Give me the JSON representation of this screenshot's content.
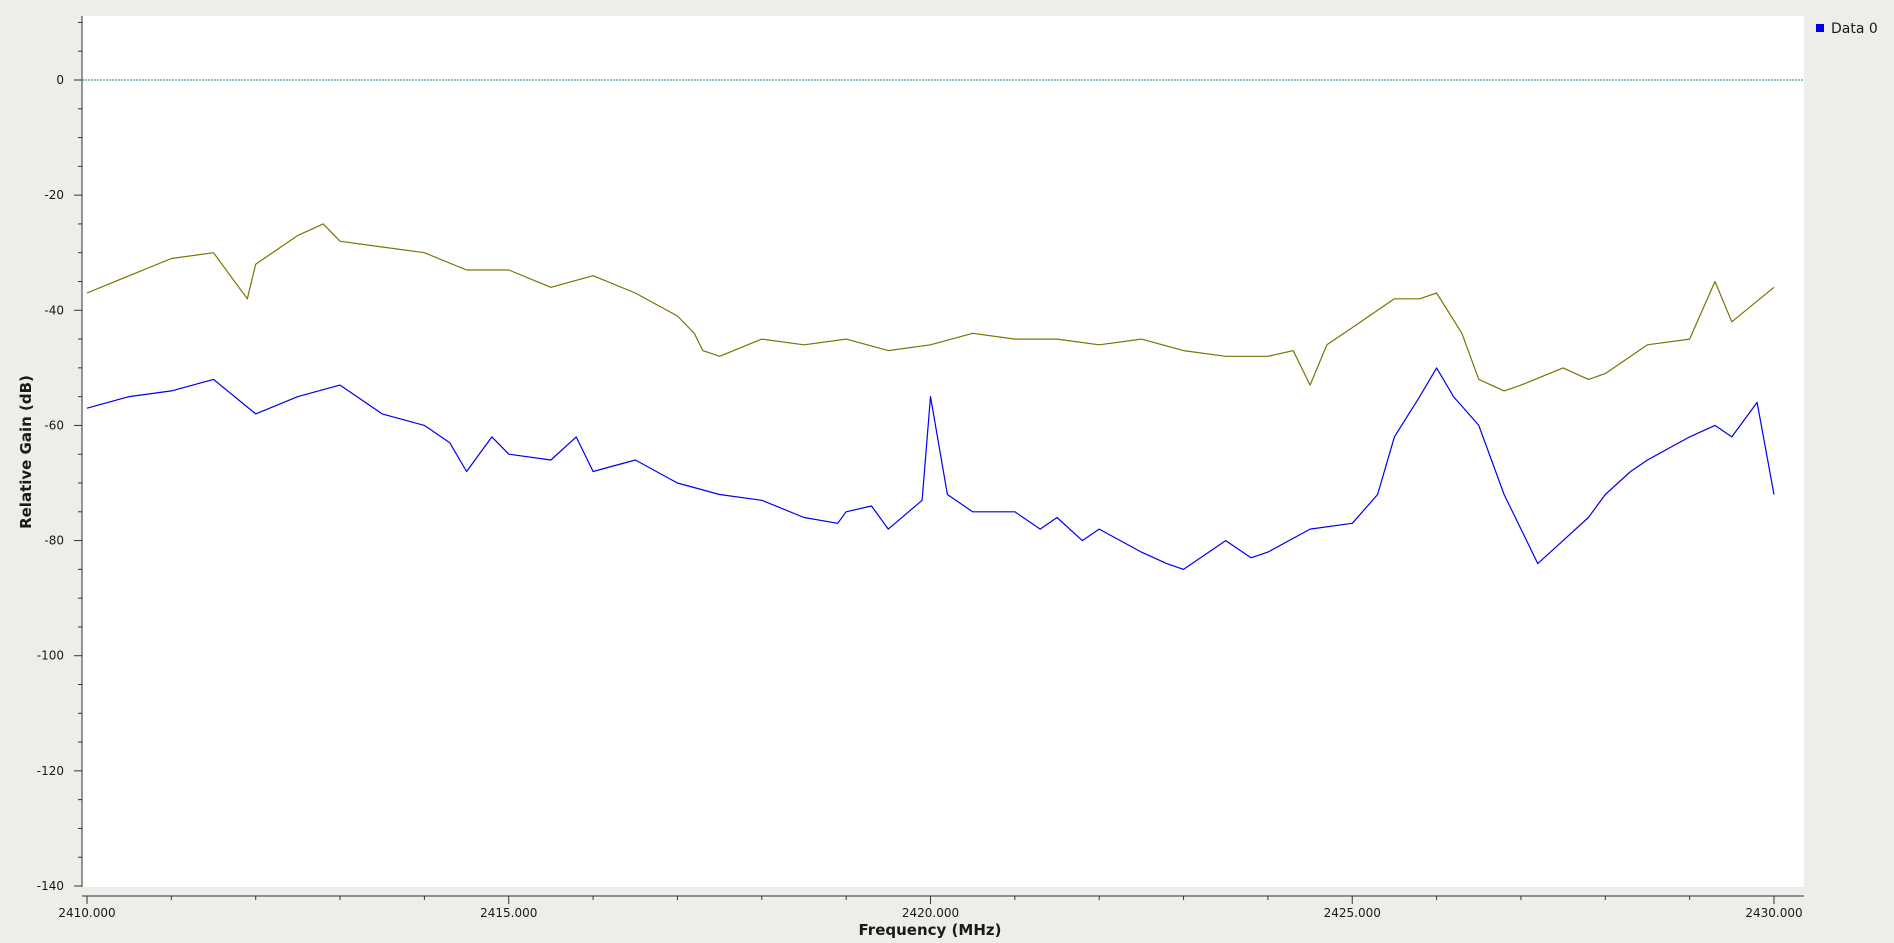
{
  "chart_data": {
    "type": "line",
    "title": "",
    "xlabel": "Frequency (MHz)",
    "ylabel": "Relative Gain (dB)",
    "xlim": [
      2410.0,
      2430.0
    ],
    "ylim": [
      -140,
      10
    ],
    "x_ticks": [
      2410.0,
      2415.0,
      2420.0,
      2425.0,
      2430.0
    ],
    "x_tick_labels": [
      "2410.000",
      "2415.000",
      "2420.000",
      "2425.000",
      "2430.000"
    ],
    "y_ticks": [
      0,
      -20,
      -40,
      -60,
      -80,
      -100,
      -120,
      -140
    ],
    "y_tick_labels": [
      "0",
      "-20",
      "-40",
      "-60",
      "-80",
      "-100",
      "-120",
      "-140"
    ],
    "grid": false,
    "reference_line": {
      "y": 0,
      "color": "#1f8a8a"
    },
    "legend": {
      "position": "top-right",
      "entries": [
        {
          "label": "Data 0",
          "color": "#0000ee"
        }
      ]
    },
    "series": [
      {
        "color": "#0000ee",
        "x": [
          2410.0,
          2410.5,
          2411.0,
          2411.5,
          2412.0,
          2412.5,
          2413.0,
          2413.5,
          2414.0,
          2414.3,
          2414.5,
          2414.8,
          2415.0,
          2415.5,
          2415.8,
          2416.0,
          2416.5,
          2417.0,
          2417.5,
          2418.0,
          2418.5,
          2418.9,
          2419.0,
          2419.3,
          2419.5,
          2419.9,
          2420.0,
          2420.2,
          2420.5,
          2421.0,
          2421.3,
          2421.5,
          2421.8,
          2422.0,
          2422.5,
          2422.8,
          2423.0,
          2423.5,
          2423.8,
          2424.0,
          2424.5,
          2425.0,
          2425.3,
          2425.5,
          2425.8,
          2426.0,
          2426.2,
          2426.5,
          2426.8,
          2427.0,
          2427.2,
          2427.5,
          2427.8,
          2428.0,
          2428.3,
          2428.5,
          2429.0,
          2429.3,
          2429.5,
          2429.8,
          2430.0
        ],
        "y": [
          -57,
          -55,
          -54,
          -52,
          -58,
          -55,
          -53,
          -58,
          -60,
          -63,
          -68,
          -62,
          -65,
          -66,
          -62,
          -68,
          -66,
          -70,
          -72,
          -73,
          -76,
          -77,
          -75,
          -74,
          -78,
          -73,
          -55,
          -72,
          -75,
          -75,
          -78,
          -76,
          -80,
          -78,
          -82,
          -84,
          -85,
          -80,
          -83,
          -82,
          -78,
          -77,
          -72,
          -62,
          -55,
          -50,
          -55,
          -60,
          -72,
          -78,
          -84,
          -80,
          -76,
          -72,
          -68,
          -66,
          -62,
          -60,
          -62,
          -56,
          -72
        ]
      },
      {
        "color": "#7a7400",
        "x": [
          2410.0,
          2410.5,
          2411.0,
          2411.5,
          2411.9,
          2412.0,
          2412.5,
          2412.8,
          2413.0,
          2413.5,
          2414.0,
          2414.5,
          2415.0,
          2415.5,
          2416.0,
          2416.5,
          2417.0,
          2417.2,
          2417.3,
          2417.5,
          2418.0,
          2418.5,
          2419.0,
          2419.5,
          2420.0,
          2420.5,
          2421.0,
          2421.5,
          2422.0,
          2422.5,
          2423.0,
          2423.5,
          2424.0,
          2424.3,
          2424.5,
          2424.7,
          2425.0,
          2425.3,
          2425.5,
          2425.8,
          2426.0,
          2426.3,
          2426.5,
          2426.8,
          2427.0,
          2427.5,
          2427.8,
          2428.0,
          2428.5,
          2429.0,
          2429.3,
          2429.5,
          2430.0
        ],
        "y": [
          -37,
          -34,
          -31,
          -30,
          -38,
          -32,
          -27,
          -25,
          -28,
          -29,
          -30,
          -33,
          -33,
          -36,
          -34,
          -37,
          -41,
          -44,
          -47,
          -48,
          -45,
          -46,
          -45,
          -47,
          -46,
          -44,
          -45,
          -45,
          -46,
          -45,
          -47,
          -48,
          -48,
          -47,
          -53,
          -46,
          -43,
          -40,
          -38,
          -38,
          -37,
          -44,
          -52,
          -54,
          -53,
          -50,
          -52,
          -51,
          -46,
          -45,
          -35,
          -42,
          -36
        ]
      }
    ]
  }
}
